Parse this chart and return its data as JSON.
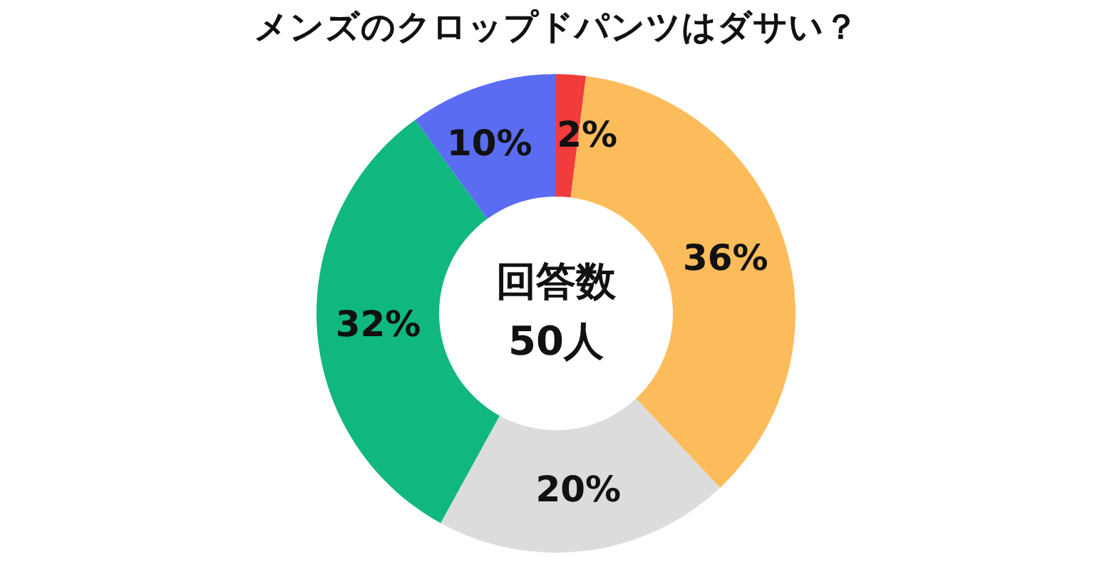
{
  "chart_data": {
    "type": "donut",
    "title": "メンズのクロップドパンツはダサい？",
    "categories": [
      null,
      null,
      null,
      null,
      null
    ],
    "values": [
      2,
      36,
      20,
      32,
      10
    ],
    "value_labels": [
      "2%",
      "36%",
      "20%",
      "32%",
      "10%"
    ],
    "colors": [
      "#f23b3b",
      "#fdbc5c",
      "#dcdcdc",
      "#10b77f",
      "#5a6cf2"
    ],
    "annotations": [
      "回答数",
      "50人"
    ]
  }
}
